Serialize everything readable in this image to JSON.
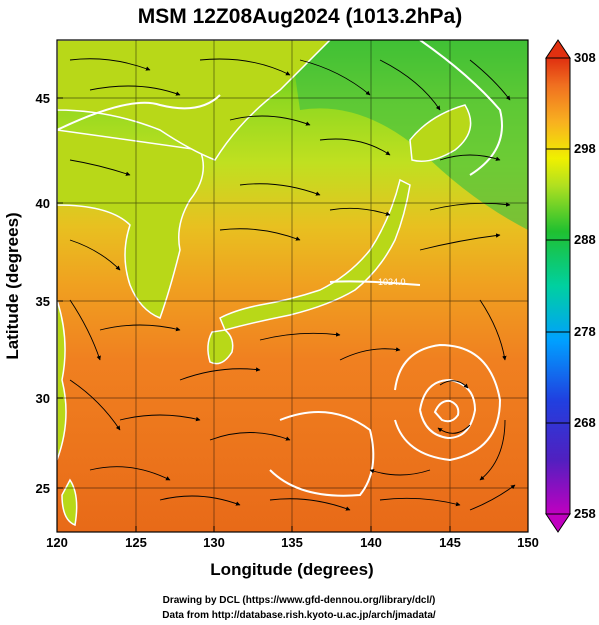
{
  "title": "MSM 12Z08Aug2024 (1013.2hPa)",
  "x_axis": {
    "label": "Longitude (degrees)",
    "range": [
      120,
      150
    ],
    "ticks": [
      120,
      125,
      130,
      135,
      140,
      145,
      150
    ]
  },
  "y_axis": {
    "label": "Latitude  (degrees)",
    "range": [
      22.4,
      47.6
    ],
    "ticks": [
      25,
      30,
      35,
      40,
      45
    ]
  },
  "colorbar": {
    "range": [
      258,
      308
    ],
    "ticks": [
      308,
      298,
      288,
      278,
      268,
      258
    ],
    "colors": [
      "#c000c0",
      "#3030d0",
      "#00a0ff",
      "#00d0a0",
      "#20c020",
      "#b0e020",
      "#f0f000",
      "#f8b020",
      "#f07020",
      "#e03010"
    ]
  },
  "contour_label": "1024.0",
  "credits": {
    "line1": "Drawing by DCL (https://www.gfd-dennou.org/library/dcl/)",
    "line2": "Data from http://database.rish.kyoto-u.ac.jp/arch/jmadata/"
  },
  "colors": {
    "land_outline": "#ffffff",
    "streamline": "#000000",
    "isobar": "#ffffff"
  }
}
